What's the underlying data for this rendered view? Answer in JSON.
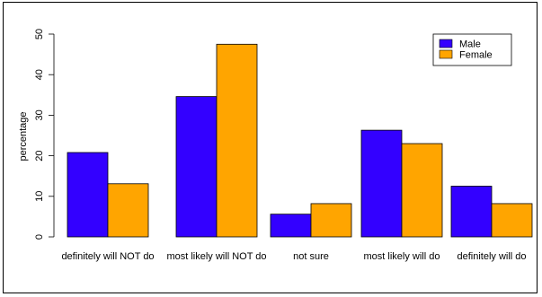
{
  "chart_data": {
    "type": "bar",
    "categories": [
      "definitely will NOT do",
      "most likely will NOT do",
      "not sure",
      "most likely will do",
      "definitely will do"
    ],
    "series": [
      {
        "name": "Male",
        "color": "#3300ff",
        "values": [
          20.8,
          34.6,
          5.6,
          26.3,
          12.5
        ]
      },
      {
        "name": "Female",
        "color": "#ffa500",
        "values": [
          13.1,
          47.5,
          8.2,
          23.0,
          8.2
        ]
      }
    ],
    "title": "",
    "xlabel": "",
    "ylabel": "percentage",
    "ylim": [
      0,
      50
    ],
    "yticks": [
      0,
      10,
      20,
      30,
      40,
      50
    ],
    "grid": false,
    "legend_position": "top-right"
  }
}
